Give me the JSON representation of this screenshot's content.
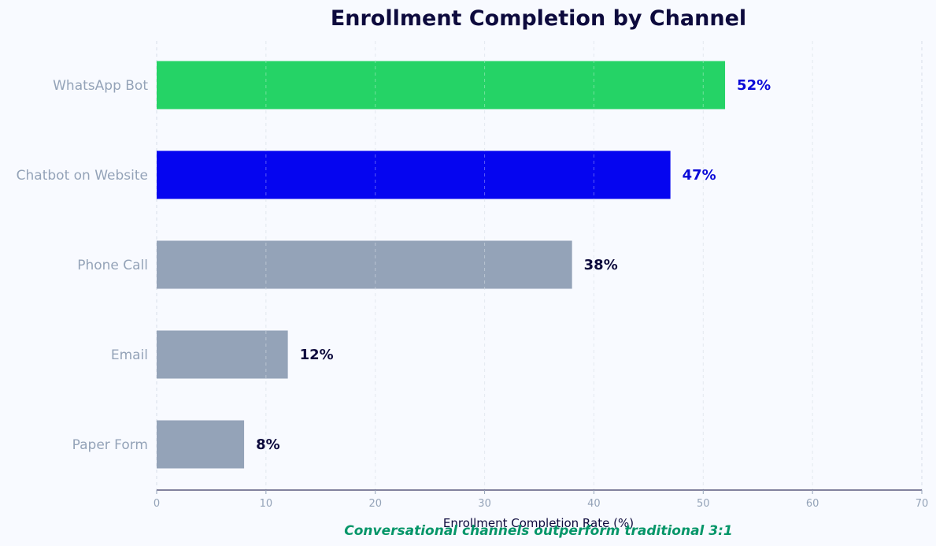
{
  "chart_data": {
    "type": "bar",
    "orientation": "horizontal",
    "title": "Enrollment Completion by Channel",
    "xlabel": "Enrollment Completion Rate (%)",
    "ylabel": "",
    "xlim": [
      0,
      70
    ],
    "x_ticks": [
      0,
      10,
      20,
      30,
      40,
      50,
      60,
      70
    ],
    "grid": "vertical dashed",
    "categories": [
      "WhatsApp Bot",
      "Chatbot on Website",
      "Phone Call",
      "Email",
      "Paper Form"
    ],
    "values": [
      52,
      47,
      38,
      12,
      8
    ],
    "value_labels": [
      "52%",
      "47%",
      "38%",
      "12%",
      "8%"
    ],
    "bar_colors": [
      "#25d366",
      "#0505f0",
      "#94a3b8",
      "#94a3b8",
      "#94a3b8"
    ],
    "value_label_colors": [
      "#0a0ad8",
      "#0a0ad8",
      "#0d0a3d",
      "#0d0a3d",
      "#0d0a3d"
    ],
    "annotation": "Conversational channels outperform traditional 3:1"
  }
}
